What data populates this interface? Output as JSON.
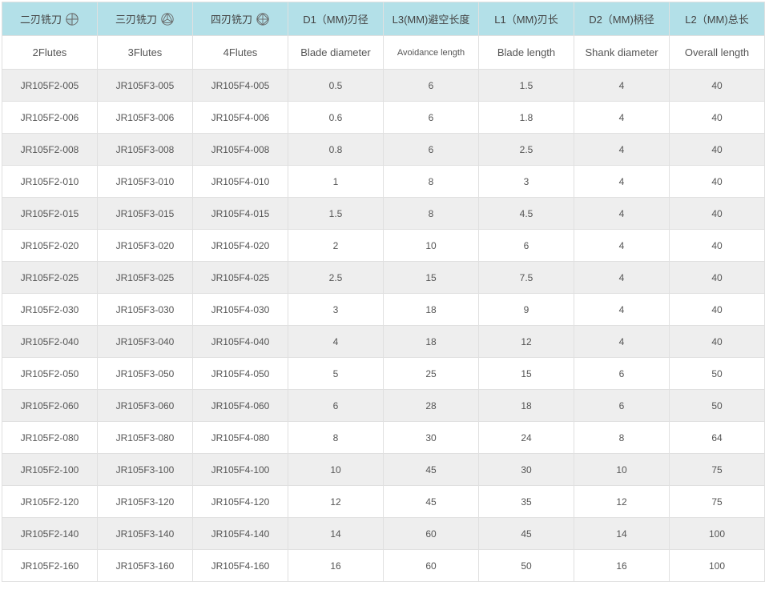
{
  "table": {
    "type": "table",
    "colors": {
      "header_bg": "#b3e0e8",
      "row_odd_bg": "#eeeeee",
      "row_even_bg": "#ffffff",
      "border": "#e0e0e0",
      "text": "#555555",
      "icon_stroke": "#666666"
    },
    "font": {
      "family": "Arial",
      "size_body": 12,
      "size_header": 13
    },
    "columns_cn": [
      "二刃铣刀",
      "三刃铣刀",
      "四刃铣刀",
      "D1（MM)刃径",
      "L3(MM)避空长度",
      "L1（MM)刃长",
      "D2（MM)柄径",
      "L2（MM)总长"
    ],
    "columns_en": [
      "2Flutes",
      "3Flutes",
      "4Flutes",
      "Blade diameter",
      "Avoidance length",
      "Blade length",
      "Shank diameter",
      "Overall length"
    ],
    "icon_flutes": [
      2,
      3,
      4
    ],
    "rows": [
      [
        "JR105F2-005",
        "JR105F3-005",
        "JR105F4-005",
        "0.5",
        "6",
        "1.5",
        "4",
        "40"
      ],
      [
        "JR105F2-006",
        "JR105F3-006",
        "JR105F4-006",
        "0.6",
        "6",
        "1.8",
        "4",
        "40"
      ],
      [
        "JR105F2-008",
        "JR105F3-008",
        "JR105F4-008",
        "0.8",
        "6",
        "2.5",
        "4",
        "40"
      ],
      [
        "JR105F2-010",
        "JR105F3-010",
        "JR105F4-010",
        "1",
        "8",
        "3",
        "4",
        "40"
      ],
      [
        "JR105F2-015",
        "JR105F3-015",
        "JR105F4-015",
        "1.5",
        "8",
        "4.5",
        "4",
        "40"
      ],
      [
        "JR105F2-020",
        "JR105F3-020",
        "JR105F4-020",
        "2",
        "10",
        "6",
        "4",
        "40"
      ],
      [
        "JR105F2-025",
        "JR105F3-025",
        "JR105F4-025",
        "2.5",
        "15",
        "7.5",
        "4",
        "40"
      ],
      [
        "JR105F2-030",
        "JR105F3-030",
        "JR105F4-030",
        "3",
        "18",
        "9",
        "4",
        "40"
      ],
      [
        "JR105F2-040",
        "JR105F3-040",
        "JR105F4-040",
        "4",
        "18",
        "12",
        "4",
        "40"
      ],
      [
        "JR105F2-050",
        "JR105F3-050",
        "JR105F4-050",
        "5",
        "25",
        "15",
        "6",
        "50"
      ],
      [
        "JR105F2-060",
        "JR105F3-060",
        "JR105F4-060",
        "6",
        "28",
        "18",
        "6",
        "50"
      ],
      [
        "JR105F2-080",
        "JR105F3-080",
        "JR105F4-080",
        "8",
        "30",
        "24",
        "8",
        "64"
      ],
      [
        "JR105F2-100",
        "JR105F3-100",
        "JR105F4-100",
        "10",
        "45",
        "30",
        "10",
        "75"
      ],
      [
        "JR105F2-120",
        "JR105F3-120",
        "JR105F4-120",
        "12",
        "45",
        "35",
        "12",
        "75"
      ],
      [
        "JR105F2-140",
        "JR105F3-140",
        "JR105F4-140",
        "14",
        "60",
        "45",
        "14",
        "100"
      ],
      [
        "JR105F2-160",
        "JR105F3-160",
        "JR105F4-160",
        "16",
        "60",
        "50",
        "16",
        "100"
      ]
    ]
  }
}
